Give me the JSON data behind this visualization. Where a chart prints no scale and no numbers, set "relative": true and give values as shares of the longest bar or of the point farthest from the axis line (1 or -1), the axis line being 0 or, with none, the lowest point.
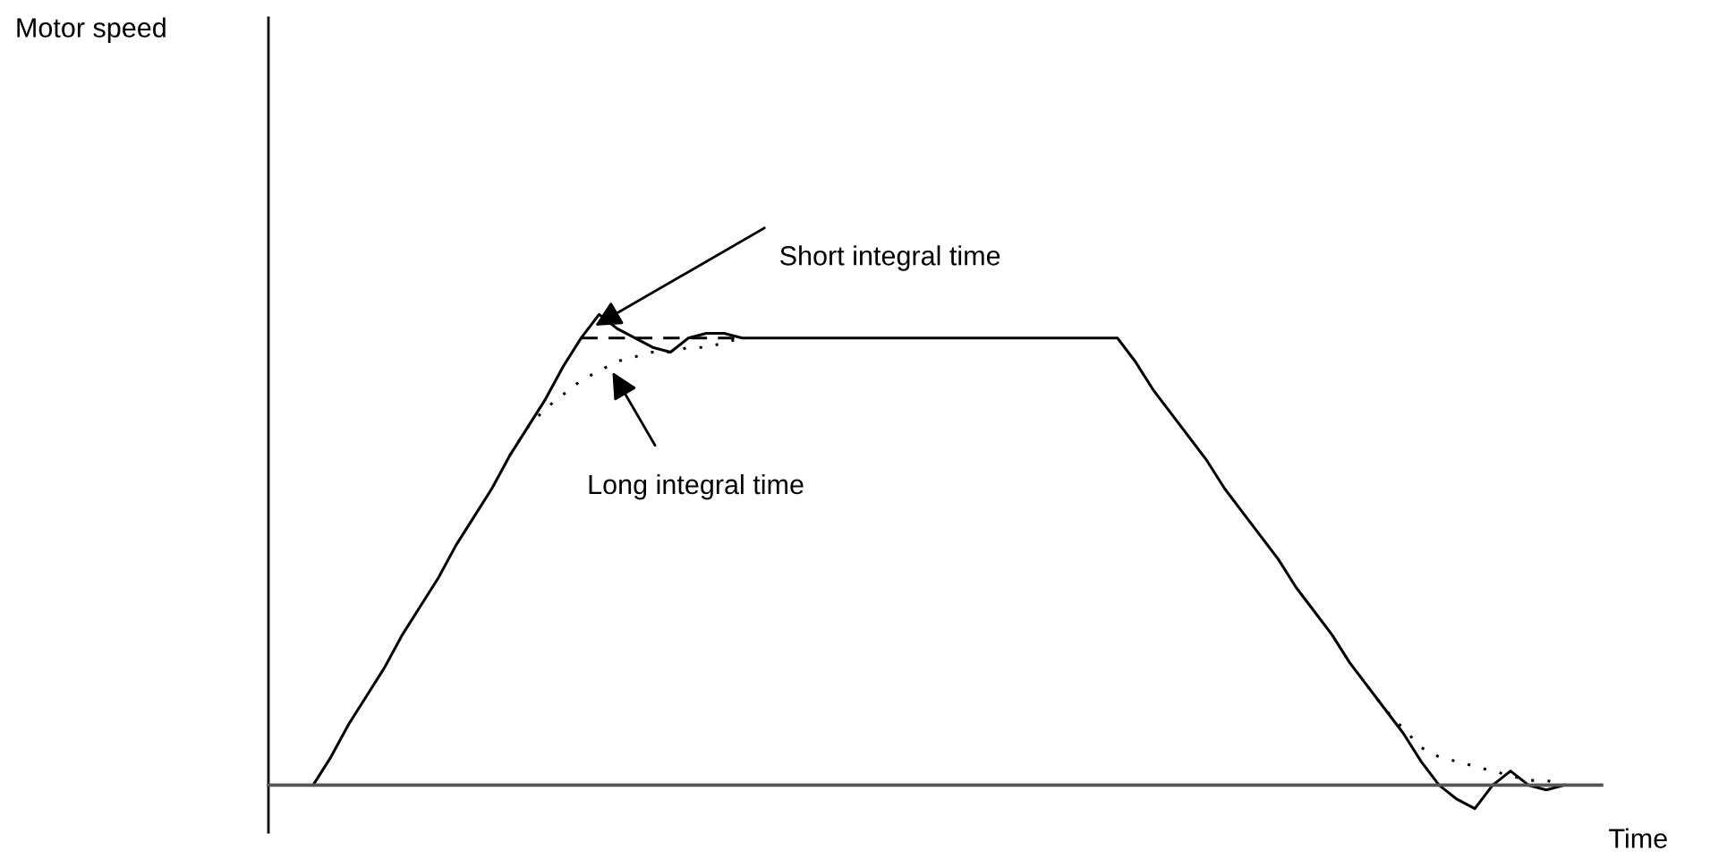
{
  "chart_data": {
    "type": "line",
    "relative": true,
    "xlabel": "Time",
    "marker": "none",
    "categories": [
      null,
      null,
      null,
      null,
      null,
      null,
      null,
      null,
      null,
      null,
      null,
      null,
      null,
      null,
      null,
      null,
      null,
      null,
      null,
      null,
      null,
      null,
      null,
      null,
      null,
      null,
      null,
      null,
      null,
      null,
      null,
      null,
      null,
      null,
      null,
      null,
      null,
      null,
      null,
      null,
      null,
      null,
      null,
      null,
      null,
      null,
      null,
      null,
      null,
      null,
      null,
      null,
      null,
      null,
      null,
      null,
      null,
      null,
      null,
      null,
      null,
      null,
      null,
      null,
      null,
      null,
      null,
      null,
      null,
      null,
      null
    ],
    "series": [
      {
        "color": "#000000",
        "line_style": "solid",
        "values": [
          0,
          0.06,
          0.13,
          0.19,
          0.25,
          0.32,
          0.38,
          0.44,
          0.51,
          0.57,
          0.63,
          0.7,
          0.76,
          0.82,
          0.89,
          0.95,
          1.0,
          0.97,
          0.95,
          0.93,
          0.92,
          0.95,
          0.96,
          0.96,
          0.95,
          0.95,
          0.95,
          0.95,
          0.95,
          0.95,
          0.95,
          0.95,
          0.95,
          0.95,
          0.95,
          0.95,
          0.95,
          0.95,
          0.95,
          0.95,
          0.95,
          0.95,
          0.95,
          0.95,
          0.95,
          0.95,
          0.9,
          0.84,
          0.79,
          0.74,
          0.69,
          0.63,
          0.58,
          0.53,
          0.48,
          0.42,
          0.37,
          0.32,
          0.26,
          0.21,
          0.16,
          0.11,
          0.05,
          0,
          -0.03,
          -0.05,
          0,
          0.03,
          0,
          -0.01,
          0
        ]
      },
      {
        "color": "#000000",
        "line_style": "dotted",
        "values": [
          null,
          null,
          null,
          null,
          null,
          null,
          null,
          null,
          null,
          null,
          null,
          0.7,
          0.76,
          0.8,
          0.83,
          0.86,
          0.88,
          0.9,
          0.91,
          0.92,
          0.92,
          0.93,
          0.93,
          0.94,
          0.95,
          null,
          null,
          null,
          null,
          null,
          null,
          null,
          null,
          null,
          null,
          null,
          null,
          null,
          null,
          null,
          null,
          null,
          null,
          null,
          null,
          null,
          null,
          null,
          null,
          null,
          null,
          null,
          null,
          null,
          null,
          null,
          null,
          null,
          null,
          0.21,
          0.16,
          0.12,
          0.08,
          0.06,
          0.05,
          0.04,
          0.03,
          0.02,
          0.01,
          0.01,
          0
        ]
      },
      {
        "color": "#000000",
        "line_style": "dashed",
        "values": [
          null,
          null,
          null,
          null,
          null,
          null,
          null,
          null,
          null,
          null,
          null,
          null,
          null,
          null,
          null,
          0.95,
          0.95,
          0.95,
          0.95,
          0.95,
          0.95,
          0.95,
          0.95,
          0.95,
          0.95,
          null,
          null,
          null,
          null,
          null,
          null,
          null,
          null,
          null,
          null,
          null,
          null,
          null,
          null,
          null,
          null,
          null,
          null,
          null,
          null,
          null,
          null,
          null,
          null,
          null,
          null,
          null,
          null,
          null,
          null,
          null,
          null,
          null,
          null,
          null,
          null,
          null,
          null,
          null,
          null,
          null,
          null,
          null,
          null,
          null,
          null
        ]
      }
    ],
    "annotations": [
      "Motor speed",
      "Short integral time",
      "Long integral time"
    ]
  }
}
